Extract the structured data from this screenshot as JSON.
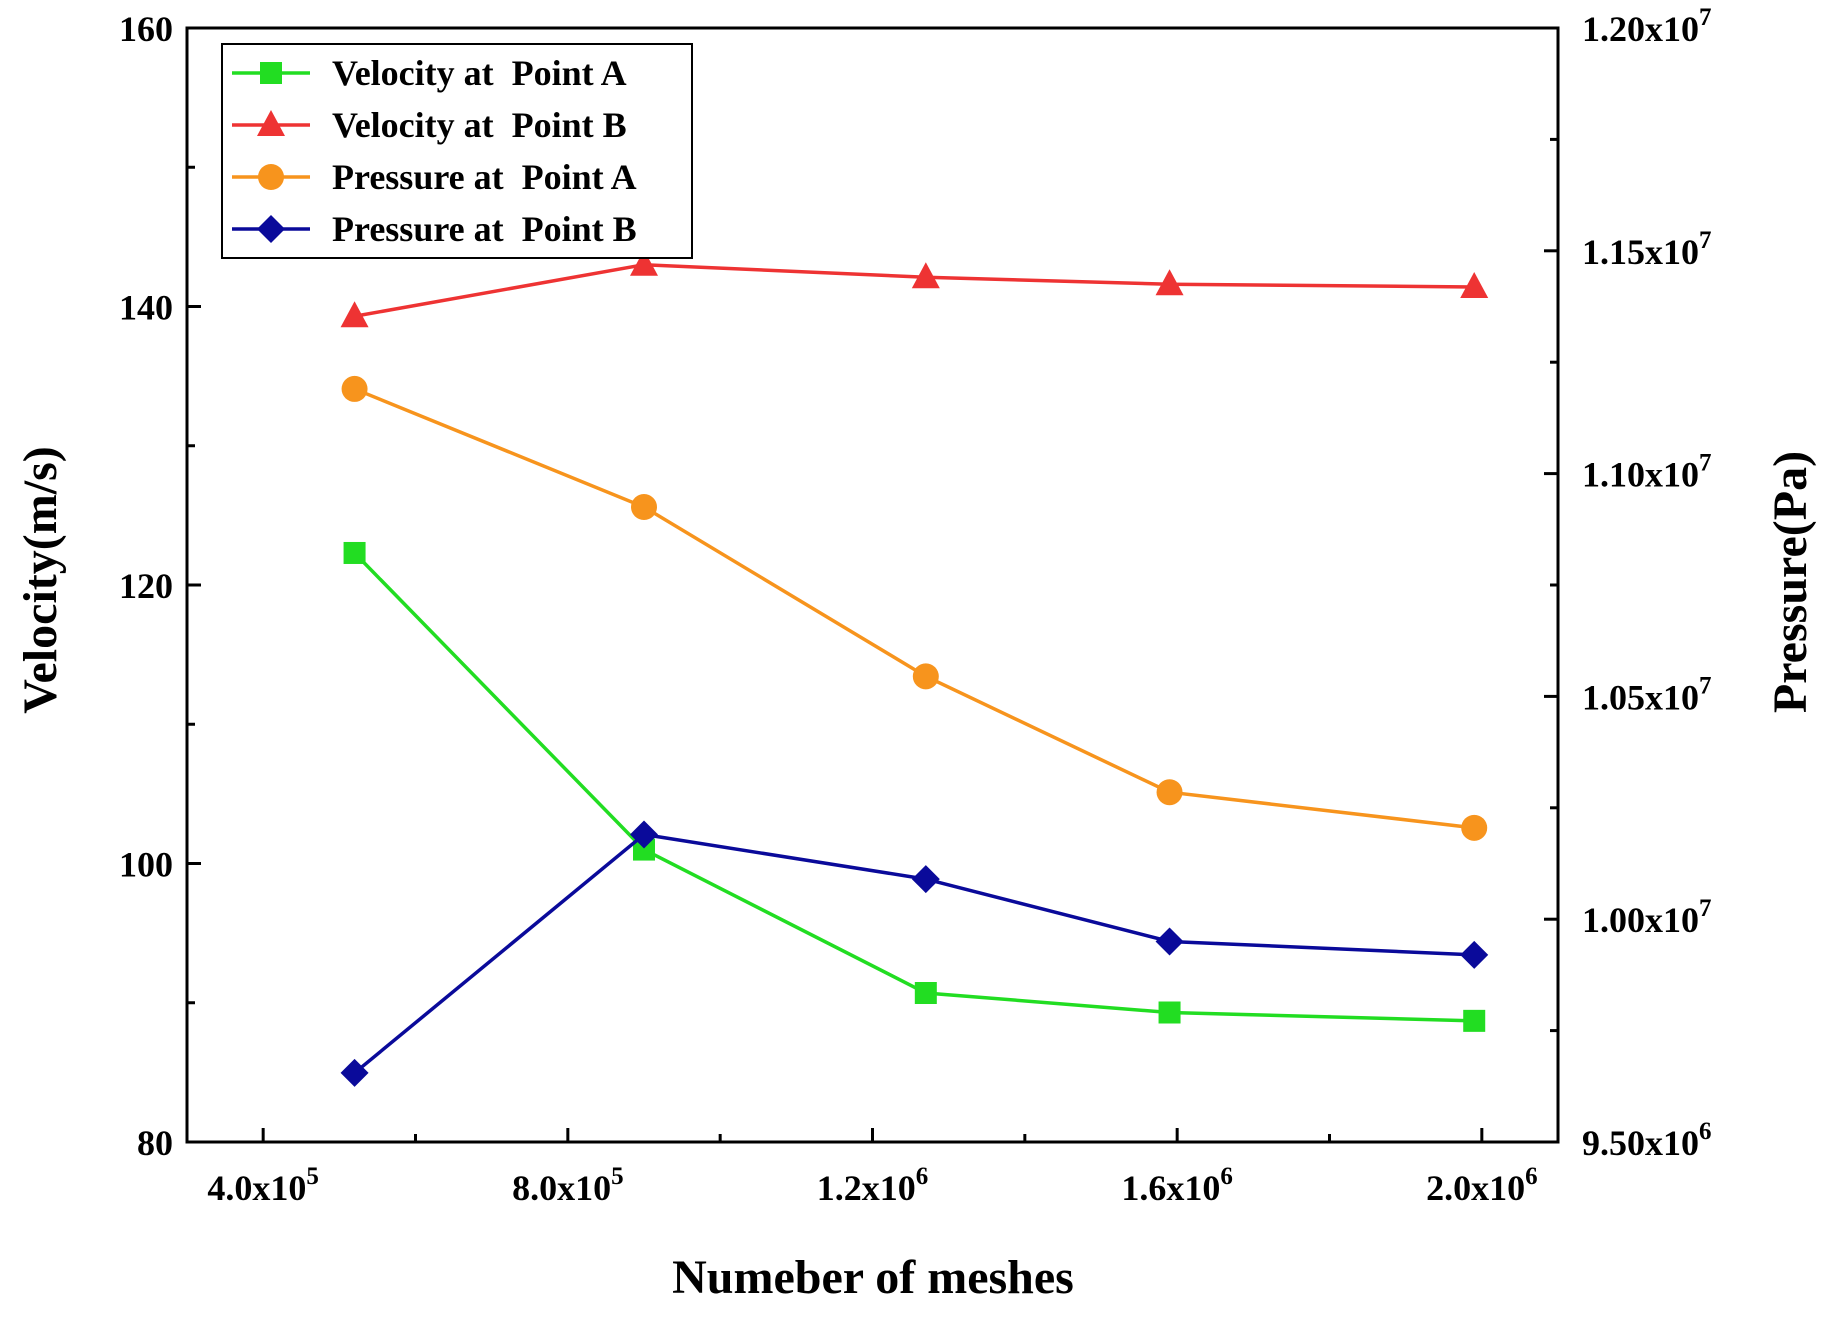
{
  "chart_data": {
    "type": "line",
    "xlabel": "Numeber of meshes",
    "ylabel_left": "Velocity(m/s)",
    "ylabel_right": "Pressure(Pa)",
    "xlim": [
      300000,
      2100000
    ],
    "ylim_left": [
      80,
      160
    ],
    "ylim_right": [
      9500000,
      12000000
    ],
    "x_ticks": [
      {
        "value": 400000,
        "mantissa": "4.0x10",
        "exp": "5"
      },
      {
        "value": 800000,
        "mantissa": "8.0x10",
        "exp": "5"
      },
      {
        "value": 1200000,
        "mantissa": "1.2x10",
        "exp": "6"
      },
      {
        "value": 1600000,
        "mantissa": "1.6x10",
        "exp": "6"
      },
      {
        "value": 2000000,
        "mantissa": "2.0x10",
        "exp": "6"
      }
    ],
    "y_left_ticks": [
      {
        "value": 80,
        "label": "80"
      },
      {
        "value": 100,
        "label": "100"
      },
      {
        "value": 120,
        "label": "120"
      },
      {
        "value": 140,
        "label": "140"
      },
      {
        "value": 160,
        "label": "160"
      }
    ],
    "y_right_ticks": [
      {
        "value": 9500000,
        "mantissa": "9.50x10",
        "exp": "6"
      },
      {
        "value": 10000000,
        "mantissa": "1.00x10",
        "exp": "7"
      },
      {
        "value": 10500000,
        "mantissa": "1.05x10",
        "exp": "7"
      },
      {
        "value": 11000000,
        "mantissa": "1.10x10",
        "exp": "7"
      },
      {
        "value": 11500000,
        "mantissa": "1.15x10",
        "exp": "7"
      },
      {
        "value": 12000000,
        "mantissa": "1.20x10",
        "exp": "7"
      }
    ],
    "legend_position": "top-left",
    "series": [
      {
        "name": "Velocity at  Point A",
        "axis": "left",
        "color": "#22dd22",
        "marker": "square",
        "x": [
          520000,
          900000,
          1270000,
          1590000,
          1990000
        ],
        "values": [
          122.3,
          101.0,
          90.7,
          89.3,
          88.7
        ]
      },
      {
        "name": "Velocity at  Point B",
        "axis": "left",
        "color": "#ee3333",
        "marker": "triangle",
        "x": [
          520000,
          900000,
          1270000,
          1590000,
          1990000
        ],
        "values": [
          139.3,
          143.0,
          142.1,
          141.6,
          141.4
        ]
      },
      {
        "name": "Pressure at  Point A",
        "axis": "right",
        "color": "#f7941d",
        "marker": "circle",
        "x": [
          520000,
          900000,
          1270000,
          1590000,
          1990000
        ],
        "values": [
          11190000,
          10925000,
          10545000,
          10285000,
          10205000
        ]
      },
      {
        "name": "Pressure at  Point B",
        "axis": "right",
        "color": "#0a0a9a",
        "marker": "diamond",
        "x": [
          520000,
          900000,
          1270000,
          1590000,
          1990000
        ],
        "values": [
          9655000,
          10190000,
          10090000,
          9950000,
          9920000
        ]
      }
    ]
  }
}
